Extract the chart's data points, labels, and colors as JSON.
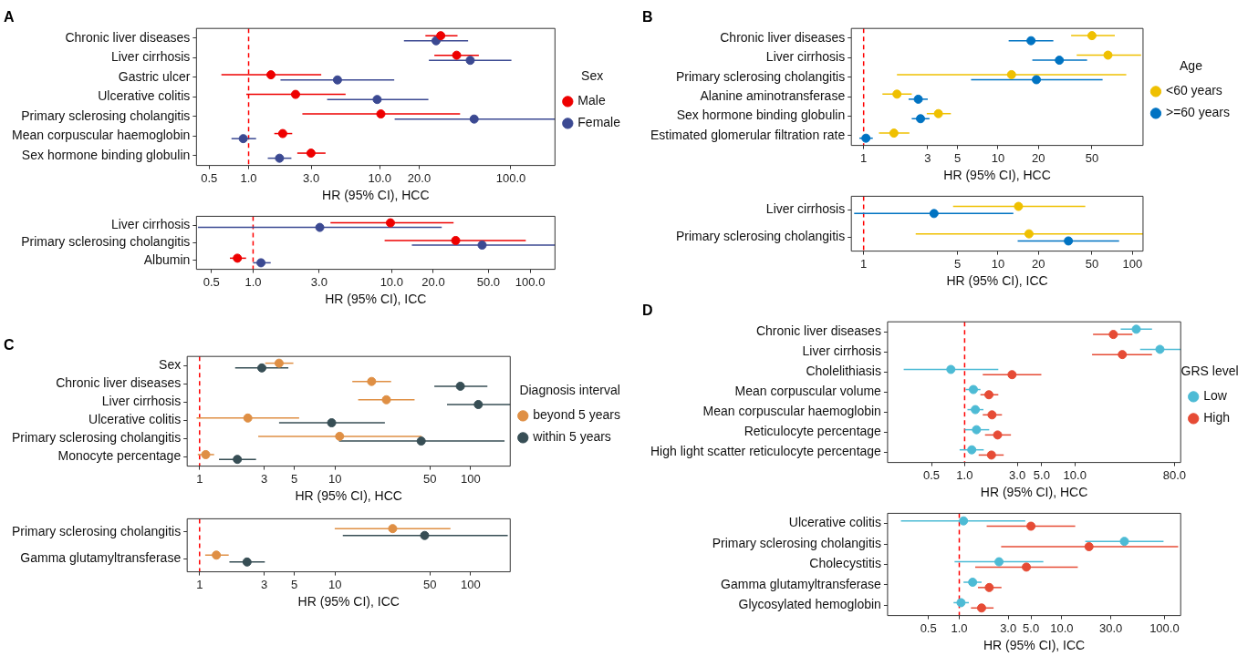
{
  "chart_data": [
    {
      "type": "scatter",
      "title": "A",
      "orientation": "horizontal",
      "log": "x",
      "marker": "circle",
      "legend": "right",
      "legend_title": "Sex",
      "xlabel": "HR (95% CI), HCC",
      "categories": [
        "Chronic liver diseases",
        "Liver cirrhosis",
        "Gastric ulcer",
        "Ulcerative colitis",
        "Primary sclerosing cholangitis",
        "Mean corpuscular haemoglobin",
        "Sex hormone binding globulin"
      ],
      "series": [
        {
          "name": "Male",
          "color": "#ee0000",
          "values": [
            29.2,
            38.6,
            1.48,
            2.28,
            10.2,
            1.82,
            2.99
          ],
          "errors": [
            [
              22.3,
              39.2
            ],
            [
              26.1,
              57
            ],
            [
              0.62,
              3.58
            ],
            [
              0.96,
              5.49
            ],
            [
              2.57,
              41
            ],
            [
              1.57,
              2.15
            ],
            [
              2.35,
              3.86
            ]
          ]
        },
        {
          "name": "Female",
          "color": "#3b4992",
          "values": [
            26.9,
            49,
            4.76,
            9.56,
            52.5,
            0.91,
            1.72
          ],
          "errors": [
            [
              15.3,
              47.2
            ],
            [
              23.7,
              101
            ],
            [
              1.75,
              12.9
            ],
            [
              3.97,
              23.5
            ],
            [
              13,
              217
            ],
            [
              0.74,
              1.14
            ],
            [
              1.4,
              2.12
            ]
          ]
        }
      ],
      "xlim": [
        0.4,
        217
      ],
      "xticks": [
        {
          "value": 0.5,
          "label": "0.5"
        },
        {
          "value": 1,
          "label": "1.0"
        },
        {
          "value": 3,
          "label": "3.0"
        },
        {
          "value": 10,
          "label": "10.0"
        },
        {
          "value": 20,
          "label": "20.0"
        },
        {
          "value": 100,
          "label": "100.0"
        }
      ],
      "ref_lines": [
        {
          "axis": "x",
          "value": 1,
          "color": "#ff0000",
          "line_style": "dashed"
        }
      ]
    },
    {
      "type": "scatter",
      "orientation": "horizontal",
      "log": "x",
      "marker": "circle",
      "xlabel": "HR (95% CI), ICC",
      "categories": [
        "Liver cirrhosis",
        "Primary sclerosing cholangitis",
        "Albumin"
      ],
      "series": [
        {
          "color": "#ee0000",
          "values": [
            9.8,
            29,
            0.77
          ],
          "errors": [
            [
              3.62,
              28
            ],
            [
              8.9,
              93
            ],
            [
              0.68,
              0.89
            ]
          ]
        },
        {
          "color": "#3b4992",
          "values": [
            3.03,
            45,
            1.14
          ],
          "errors": [
            [
              0.4,
              23
            ],
            [
              14,
              151
            ],
            [
              1,
              1.34
            ]
          ]
        }
      ],
      "xlim": [
        0.39,
        151
      ],
      "xticks": [
        {
          "value": 0.5,
          "label": "0.5"
        },
        {
          "value": 1,
          "label": "1.0"
        },
        {
          "value": 3,
          "label": "3.0"
        },
        {
          "value": 10,
          "label": "10.0"
        },
        {
          "value": 20,
          "label": "20.0"
        },
        {
          "value": 50,
          "label": "50.0"
        },
        {
          "value": 100,
          "label": "100.0"
        }
      ],
      "ref_lines": [
        {
          "axis": "x",
          "value": 1,
          "color": "#ff0000",
          "line_style": "dashed"
        }
      ]
    },
    {
      "type": "scatter",
      "title": "B",
      "orientation": "horizontal",
      "log": "x",
      "marker": "circle",
      "legend": "right",
      "legend_title": "Age",
      "xlabel": "HR (95% CI), HCC",
      "categories": [
        "Chronic liver diseases",
        "Liver cirrhosis",
        "Primary sclerosing cholangitis",
        "Alanine aminotransferase",
        "Sex hormone binding globulin",
        "Estimated glomerular filtration rate"
      ],
      "series": [
        {
          "name": "<60 years",
          "color": "#efc000",
          "values": [
            50,
            65.8,
            12.6,
            1.77,
            3.6,
            1.68
          ],
          "errors": [
            [
              35,
              74
            ],
            [
              38.5,
              116
            ],
            [
              1.77,
              90
            ],
            [
              1.38,
              2.28
            ],
            [
              2.95,
              4.46
            ],
            [
              1.3,
              2.19
            ]
          ]
        },
        {
          "name": ">=60 years",
          "color": "#0073c2",
          "values": [
            17.6,
            28.6,
            19.3,
            2.55,
            2.65,
            1.04
          ],
          "errors": [
            [
              12,
              25.8
            ],
            [
              18,
              46
            ],
            [
              6.3,
              60
            ],
            [
              2.16,
              3
            ],
            [
              2.28,
              3.09
            ],
            [
              0.93,
              1.17
            ]
          ]
        }
      ],
      "xlim": [
        0.81,
        120
      ],
      "xticks": [
        1,
        3,
        5,
        10,
        20,
        50
      ],
      "ref_lines": [
        {
          "axis": "x",
          "value": 1,
          "color": "#ff0000",
          "line_style": "dashed"
        }
      ]
    },
    {
      "type": "scatter",
      "orientation": "horizontal",
      "log": "x",
      "marker": "circle",
      "xlabel": "HR (95% CI), ICC",
      "categories": [
        "Liver cirrhosis",
        "Primary sclerosing cholangitis"
      ],
      "series": [
        {
          "color": "#efc000",
          "values": [
            14.2,
            17
          ],
          "errors": [
            [
              4.63,
              44.6
            ],
            [
              2.44,
              120
            ]
          ]
        },
        {
          "color": "#0073c2",
          "values": [
            3.34,
            33.4
          ],
          "errors": [
            [
              0.85,
              13
            ],
            [
              14,
              79.6
            ]
          ]
        }
      ],
      "xlim": [
        0.81,
        120
      ],
      "xticks": [
        1,
        5,
        10,
        20,
        50,
        100
      ],
      "ref_lines": [
        {
          "axis": "x",
          "value": 1,
          "color": "#ff0000",
          "line_style": "dashed"
        }
      ]
    },
    {
      "type": "scatter",
      "title": "C",
      "orientation": "horizontal",
      "log": "x",
      "marker": "circle",
      "legend": "right",
      "legend_title": "Diagnosis interval",
      "xlabel": "HR (95% CI), HCC",
      "categories": [
        "Sex",
        "Chronic liver diseases",
        "Liver cirrhosis",
        "Ulcerative colitis",
        "Primary sclerosing cholangitis",
        "Monocyte percentage"
      ],
      "series": [
        {
          "name": "beyond 5 years",
          "color": "#df8f44",
          "values": [
            3.86,
            18.6,
            23.9,
            2.27,
            10.8,
            1.11
          ],
          "errors": [
            [
              3.05,
              4.92
            ],
            [
              13.4,
              25.9
            ],
            [
              14.8,
              38.6
            ],
            [
              0.95,
              5.43
            ],
            [
              2.71,
              43.5
            ],
            [
              0.97,
              1.28
            ]
          ]
        },
        {
          "name": "within 5 years",
          "color": "#374e55",
          "values": [
            2.88,
            84,
            114,
            9.43,
            43.2,
            1.9
          ],
          "errors": [
            [
              1.83,
              4.52
            ],
            [
              54,
              133
            ],
            [
              67,
              196
            ],
            [
              3.86,
              23.3
            ],
            [
              10.7,
              178
            ],
            [
              1.39,
              2.61
            ]
          ]
        }
      ],
      "xlim": [
        0.81,
        196
      ],
      "xticks": [
        1,
        3,
        5,
        10,
        50,
        100
      ],
      "ref_lines": [
        {
          "axis": "x",
          "value": 1,
          "color": "#ff0000",
          "line_style": "dashed"
        }
      ]
    },
    {
      "type": "scatter",
      "orientation": "horizontal",
      "log": "x",
      "marker": "circle",
      "xlabel": "HR (95% CI), ICC",
      "categories": [
        "Primary sclerosing cholangitis",
        "Gamma glutamyltransferase"
      ],
      "series": [
        {
          "color": "#df8f44",
          "values": [
            26.6,
            1.33
          ],
          "errors": [
            [
              9.94,
              71
            ],
            [
              1.1,
              1.64
            ]
          ]
        },
        {
          "color": "#374e55",
          "values": [
            45.8,
            2.24
          ],
          "errors": [
            [
              11.4,
              188
            ],
            [
              1.66,
              3.03
            ]
          ]
        }
      ],
      "xlim": [
        0.81,
        196
      ],
      "xticks": [
        1,
        3,
        5,
        10,
        50,
        100
      ],
      "ref_lines": [
        {
          "axis": "x",
          "value": 1,
          "color": "#ff0000",
          "line_style": "dashed"
        }
      ]
    },
    {
      "type": "scatter",
      "title": "D",
      "orientation": "horizontal",
      "log": "x",
      "marker": "circle",
      "legend": "right",
      "legend_title": "GRS level",
      "xlabel": "HR (95% CI), HCC",
      "categories": [
        "Chronic liver diseases",
        "Liver cirrhosis",
        "Cholelithiasis",
        "Mean corpuscular volume",
        "Mean corpuscular haemoglobin",
        "Reticulocyte percentage",
        "High light scatter reticulocyte percentage"
      ],
      "series": [
        {
          "name": "Low",
          "color": "#4dbbd5",
          "values": [
            36,
            59,
            0.75,
            1.2,
            1.25,
            1.28,
            1.16
          ],
          "errors": [
            [
              26,
              50
            ],
            [
              39,
              91
            ],
            [
              0.28,
              2.02
            ],
            [
              1.02,
              1.39
            ],
            [
              1.06,
              1.48
            ],
            [
              1,
              1.67
            ],
            [
              0.9,
              1.49
            ]
          ]
        },
        {
          "name": "High",
          "color": "#e64b35",
          "values": [
            22.3,
            26.9,
            2.69,
            1.66,
            1.77,
            1.99,
            1.75
          ],
          "errors": [
            [
              14.6,
              33.2
            ],
            [
              14.3,
              50
            ],
            [
              1.46,
              4.96
            ],
            [
              1.39,
              2.02
            ],
            [
              1.46,
              2.18
            ],
            [
              1.53,
              2.63
            ],
            [
              1.34,
              2.26
            ]
          ]
        }
      ],
      "xlim": [
        0.2,
        91
      ],
      "xticks": [
        {
          "value": 0.5,
          "label": "0.5"
        },
        {
          "value": 1,
          "label": "1.0"
        },
        {
          "value": 3,
          "label": "3.0"
        },
        {
          "value": 5,
          "label": "5.0"
        },
        {
          "value": 10,
          "label": "10.0"
        },
        {
          "value": 80,
          "label": "80.0"
        }
      ],
      "ref_lines": [
        {
          "axis": "x",
          "value": 1,
          "color": "#ff0000",
          "line_style": "dashed"
        }
      ]
    },
    {
      "type": "scatter",
      "orientation": "horizontal",
      "log": "x",
      "marker": "circle",
      "xlabel": "HR (95% CI), ICC",
      "categories": [
        "Ulcerative colitis",
        "Primary sclerosing cholangitis",
        "Cholecystitis",
        "Gamma glutamyltransferase",
        "Glycosylated hemoglobin"
      ],
      "series": [
        {
          "color": "#4dbbd5",
          "values": [
            1.1,
            40.7,
            2.44,
            1.35,
            1.04
          ],
          "errors": [
            [
              0.27,
              4.4
            ],
            [
              16.9,
              98
            ],
            [
              0.9,
              6.6
            ],
            [
              1.1,
              1.65
            ],
            [
              0.88,
              1.24
            ]
          ]
        },
        {
          "color": "#e64b35",
          "values": [
            5,
            18.4,
            4.51,
            1.96,
            1.65
          ],
          "errors": [
            [
              1.85,
              13.5
            ],
            [
              2.56,
              136
            ],
            [
              1.43,
              14.3
            ],
            [
              1.52,
              2.58
            ],
            [
              1.3,
              2.16
            ]
          ]
        }
      ],
      "xlim": [
        0.2,
        144
      ],
      "xticks": [
        {
          "value": 0.5,
          "label": "0.5"
        },
        {
          "value": 1,
          "label": "1.0"
        },
        {
          "value": 3,
          "label": "3.0"
        },
        {
          "value": 5,
          "label": "5.0"
        },
        {
          "value": 10,
          "label": "10.0"
        },
        {
          "value": 30,
          "label": "30.0"
        },
        {
          "value": 100,
          "label": "100.0"
        }
      ],
      "ref_lines": [
        {
          "axis": "x",
          "value": 1,
          "color": "#ff0000",
          "line_style": "dashed"
        }
      ]
    }
  ]
}
